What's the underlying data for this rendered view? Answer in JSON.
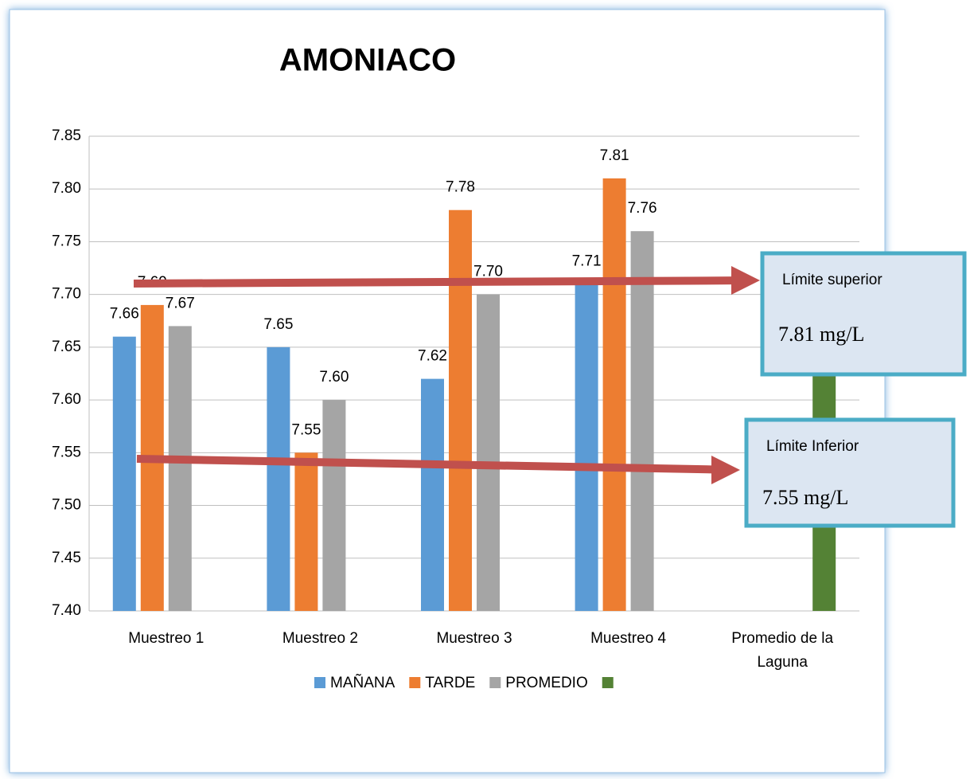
{
  "chart_data": {
    "type": "bar",
    "title": "AMONIACO",
    "categories": [
      "Muestreo 1",
      "Muestreo 2",
      "Muestreo 3",
      "Muestreo 4",
      "Promedio de la Laguna"
    ],
    "series": [
      {
        "name": "MAÑANA",
        "color": "#5b9bd5",
        "values": [
          7.66,
          7.65,
          7.62,
          7.71,
          null
        ],
        "value_labels": [
          "7.66",
          "7.65",
          "7.62",
          "7.71",
          null
        ]
      },
      {
        "name": "TARDE",
        "color": "#ed7d31",
        "values": [
          7.69,
          7.55,
          7.78,
          7.81,
          null
        ],
        "value_labels": [
          "7.69",
          "7.55",
          "7.78",
          "7.81",
          null
        ]
      },
      {
        "name": "PROMEDIO",
        "color": "#a5a5a5",
        "values": [
          7.67,
          7.6,
          7.7,
          7.76,
          null
        ],
        "value_labels": [
          "7.67",
          "7.60",
          "7.70",
          "7.76",
          null
        ]
      },
      {
        "color": "#548235",
        "values": [
          null,
          null,
          null,
          null,
          7.68
        ]
      }
    ],
    "ylim": [
      7.4,
      7.85
    ],
    "yticks": [
      {
        "value": 7.4,
        "label": "7.40"
      },
      {
        "value": 7.45,
        "label": "7.45"
      },
      {
        "value": 7.5,
        "label": "7.50"
      },
      {
        "value": 7.55,
        "label": "7.55"
      },
      {
        "value": 7.6,
        "label": "7.60"
      },
      {
        "value": 7.65,
        "label": "7.65"
      },
      {
        "value": 7.7,
        "label": "7.70"
      },
      {
        "value": 7.75,
        "label": "7.75"
      },
      {
        "value": 7.8,
        "label": "7.80"
      },
      {
        "value": 7.85,
        "label": "7.85"
      }
    ],
    "grid": true,
    "legend": "bottom",
    "annotations": [
      {
        "title": "Límite superior",
        "text": "7.81 mg/L"
      },
      {
        "title": "Límite Inferior",
        "text": "7.55 mg/L"
      }
    ]
  }
}
